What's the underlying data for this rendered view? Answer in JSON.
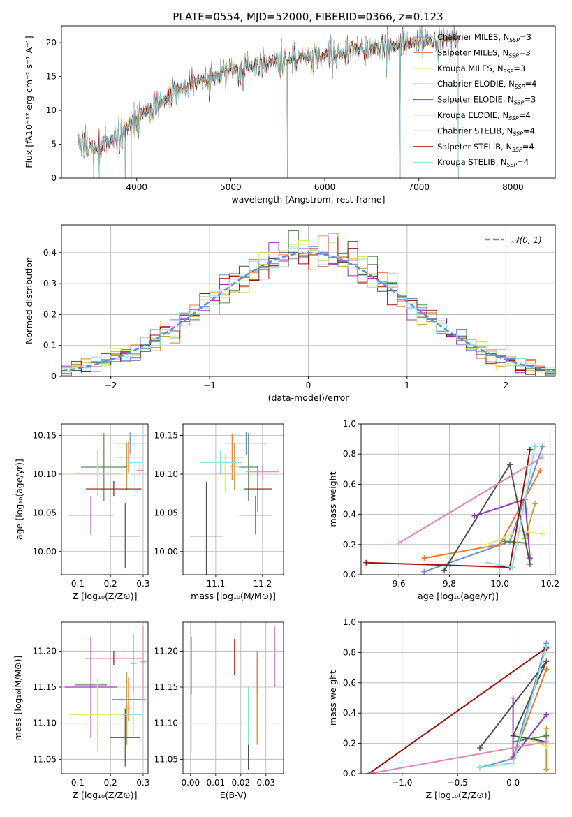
{
  "colors": {
    "chabrier_miles": "#6b8fd6",
    "salpeter_miles": "#e87a3a",
    "kroupa_miles": "#c8a23a",
    "chabrier_elodie": "#5a8a5a",
    "salpeter_elodie": "#9a35b8",
    "kroupa_elodie": "#d6ee66",
    "chabrier_stelib": "#505050",
    "salpeter_stelib": "#a01010",
    "kroupa_stelib": "#8edcdc",
    "pink": "#e088b8",
    "normal": "#5b8ed6"
  },
  "chart_data": [
    {
      "type": "line",
      "title": "PLATE=0554, MJD=52000, FIBERID=0366, z=0.123",
      "xlabel": "wavelength [Angstrom, rest frame]",
      "ylabel": "Flux [fλ10⁻¹⁷ erg cm⁻² s⁻¹ A⁻¹]",
      "xlim": [
        3200,
        8450
      ],
      "ylim": [
        0,
        22.5
      ],
      "xticks": [
        4000,
        5000,
        6000,
        7000,
        8000
      ],
      "yticks": [
        0,
        5,
        10,
        15,
        20
      ],
      "legend_placement": "upper-right",
      "legend": [
        "Chabrier MILES, N_SSP=3",
        "Salpeter MILES, N_SSP=3",
        "Kroupa MILES, N_SSP=3",
        "Chabrier ELODIE, N_SSP=4",
        "Salpeter ELODIE, N_SSP=3",
        "Kroupa ELODIE, N_SSP=4",
        "Chabrier STELIB, N_SSP=4",
        "Salpeter STELIB, N_SSP=4",
        "Kroupa STELIB, N_SSP=4"
      ],
      "spectrum_range": [
        3380,
        7420
      ],
      "continuum": [
        [
          3380,
          4.6
        ],
        [
          3600,
          4.5
        ],
        [
          3800,
          6.0
        ],
        [
          4000,
          9.0
        ],
        [
          4200,
          10.5
        ],
        [
          4400,
          12.5
        ],
        [
          4600,
          14.0
        ],
        [
          4800,
          15.0
        ],
        [
          5000,
          16.0
        ],
        [
          5200,
          16.5
        ],
        [
          5400,
          17.2
        ],
        [
          5600,
          17.5
        ],
        [
          5800,
          17.8
        ],
        [
          6000,
          18.2
        ],
        [
          6200,
          18.6
        ],
        [
          6400,
          19.0
        ],
        [
          6600,
          19.4
        ],
        [
          6800,
          19.7
        ],
        [
          7000,
          20.0
        ],
        [
          7200,
          20.5
        ],
        [
          7420,
          21.0
        ]
      ],
      "dips": [
        [
          3540,
          0
        ],
        [
          3600,
          0
        ],
        [
          3880,
          0
        ],
        [
          3940,
          0
        ],
        [
          5600,
          0
        ],
        [
          6800,
          0
        ],
        [
          7420,
          0
        ]
      ]
    },
    {
      "type": "line",
      "title": "",
      "xlabel": "(data-model)/error",
      "ylabel": "Normed distribution",
      "xlim": [
        -2.5,
        2.5
      ],
      "ylim": [
        0,
        0.49
      ],
      "xticks": [
        -2,
        -1,
        0,
        1,
        2
      ],
      "yticks": [
        0.0,
        0.1,
        0.2,
        0.3,
        0.4
      ],
      "legend_placement": "upper-right",
      "legend": [
        "𝒩(0, 1)"
      ],
      "bin_width": 0.1,
      "grid": true
    },
    {
      "type": "scatter",
      "xlabel": "Z [log₁₀(Z/Z⊙)]",
      "ylabel": "age  [log₁₀(age/yr)]",
      "xlim": [
        0.05,
        0.315
      ],
      "ylim": [
        9.97,
        10.165
      ],
      "xticks": [
        0.1,
        0.2,
        0.3
      ],
      "xticklabels": [
        "0.1",
        "0.2",
        "0.3"
      ],
      "yticks": [
        10.0,
        10.05,
        10.1,
        10.15
      ],
      "yticklabels": [
        "10.00",
        "10.05",
        "10.10",
        "10.15"
      ],
      "points": [
        {
          "c": "chabrier_miles",
          "x": 0.26,
          "xe": 0.05,
          "y": 10.14,
          "ye": 0.014
        },
        {
          "c": "salpeter_miles",
          "x": 0.255,
          "xe": 0.045,
          "y": 10.122,
          "ye": 0.02
        },
        {
          "c": "kroupa_miles",
          "x": 0.25,
          "xe": 0.01,
          "y": 10.11,
          "ye": 0.03
        },
        {
          "c": "chabrier_elodie",
          "x": 0.18,
          "xe": 0.07,
          "y": 10.109,
          "ye": 0.044
        },
        {
          "c": "salpeter_elodie",
          "x": 0.14,
          "xe": 0.07,
          "y": 10.047,
          "ye": 0.025
        },
        {
          "c": "kroupa_elodie",
          "x": 0.16,
          "xe": 0.07,
          "y": 10.101,
          "ye": 0.03
        },
        {
          "c": "chabrier_stelib",
          "x": 0.245,
          "xe": 0.045,
          "y": 10.02,
          "ye": 0.042
        },
        {
          "c": "salpeter_stelib",
          "x": 0.21,
          "xe": 0.085,
          "y": 10.081,
          "ye": 0.01
        },
        {
          "c": "kroupa_stelib",
          "x": 0.275,
          "xe": 0.025,
          "y": 10.115,
          "ye": 0.04
        },
        {
          "c": "pink",
          "x": 0.29,
          "xe": 0.01,
          "y": 10.105,
          "ye": 0.01
        }
      ]
    },
    {
      "type": "scatter",
      "xlabel": "mass [log₁₀(M/M⊙)]",
      "ylabel": "",
      "xlim": [
        11.03,
        11.245
      ],
      "ylim": [
        9.97,
        10.165
      ],
      "xticks": [
        11.1,
        11.2
      ],
      "xticklabels": [
        "11.1",
        "11.2"
      ],
      "yticks": [
        10.0,
        10.05,
        10.1,
        10.15
      ],
      "yticklabels": [
        "10.00",
        "10.05",
        "10.10",
        "10.15"
      ],
      "points": [
        {
          "c": "chabrier_miles",
          "x": 11.165,
          "xe": 0.045,
          "y": 10.14,
          "ye": 0.015
        },
        {
          "c": "salpeter_miles",
          "x": 11.135,
          "xe": 0.025,
          "y": 10.122,
          "ye": 0.03
        },
        {
          "c": "kroupa_miles",
          "x": 11.14,
          "xe": 0.01,
          "y": 10.11,
          "ye": 0.03
        },
        {
          "c": "chabrier_elodie",
          "x": 11.17,
          "xe": 0.02,
          "y": 10.109,
          "ye": 0.044
        },
        {
          "c": "salpeter_elodie",
          "x": 11.185,
          "xe": 0.035,
          "y": 10.047,
          "ye": 0.025
        },
        {
          "c": "kroupa_elodie",
          "x": 11.12,
          "xe": 0.025,
          "y": 10.101,
          "ye": 0.025
        },
        {
          "c": "chabrier_stelib",
          "x": 11.08,
          "xe": 0.035,
          "y": 10.02,
          "ye": 0.07
        },
        {
          "c": "salpeter_stelib",
          "x": 11.19,
          "xe": 0.03,
          "y": 10.081,
          "ye": 0.03
        },
        {
          "c": "kroupa_stelib",
          "x": 11.11,
          "xe": 0.045,
          "y": 10.115,
          "ye": 0.015
        },
        {
          "c": "pink",
          "x": 11.2,
          "xe": 0.035,
          "y": 10.103,
          "ye": 0.01
        }
      ]
    },
    {
      "type": "line",
      "xlabel": "age  [log₁₀(age/yr)]",
      "ylabel": "mass weight",
      "xlim": [
        9.45,
        10.22
      ],
      "ylim": [
        0,
        1
      ],
      "xticks": [
        9.6,
        9.8,
        10.0,
        10.2
      ],
      "xticklabels": [
        "9.6",
        "9.8",
        "10.0",
        "10.2"
      ],
      "yticks": [
        0,
        0.2,
        0.4,
        0.6,
        0.8,
        1.0
      ],
      "yticklabels": [
        "0.0",
        "0.2",
        "0.4",
        "0.6",
        "0.8",
        "1.0"
      ],
      "series": [
        {
          "c": "chabrier_miles",
          "pts": [
            [
              9.7,
              0.02
            ],
            [
              10.04,
              0.22
            ],
            [
              10.17,
              0.85
            ]
          ]
        },
        {
          "c": "salpeter_miles",
          "pts": [
            [
              9.7,
              0.11
            ],
            [
              10.0,
              0.2
            ],
            [
              10.16,
              0.69
            ]
          ]
        },
        {
          "c": "kroupa_miles",
          "pts": [
            [
              10.1,
              0.24
            ],
            [
              10.14,
              0.47
            ]
          ]
        },
        {
          "c": "chabrier_elodie",
          "pts": [
            [
              10.02,
              0.22
            ],
            [
              10.1,
              0.21
            ]
          ]
        },
        {
          "c": "salpeter_elodie",
          "pts": [
            [
              9.9,
              0.39
            ],
            [
              10.1,
              0.5
            ],
            [
              10.12,
              0.11
            ]
          ]
        },
        {
          "c": "kroupa_elodie",
          "pts": [
            [
              9.95,
              0.2
            ],
            [
              10.08,
              0.29
            ],
            [
              10.17,
              0.27
            ]
          ]
        },
        {
          "c": "chabrier_stelib",
          "pts": [
            [
              9.78,
              0.03
            ],
            [
              10.04,
              0.73
            ],
            [
              10.12,
              0.07
            ]
          ]
        },
        {
          "c": "salpeter_stelib",
          "pts": [
            [
              9.47,
              0.08
            ],
            [
              10.04,
              0.05
            ],
            [
              10.12,
              0.83
            ]
          ]
        },
        {
          "c": "kroupa_stelib",
          "pts": [
            [
              9.95,
              0.08
            ],
            [
              10.05,
              0.05
            ],
            [
              10.14,
              0.85
            ]
          ]
        },
        {
          "c": "pink",
          "pts": [
            [
              9.6,
              0.21
            ],
            [
              10.17,
              0.78
            ]
          ]
        }
      ]
    },
    {
      "type": "scatter",
      "xlabel": "Z [log₁₀(Z/Z⊙)]",
      "ylabel": "mass [log₁₀(M/M⊙)]",
      "xlim": [
        0.05,
        0.315
      ],
      "ylim": [
        11.03,
        11.24
      ],
      "xticks": [
        0.1,
        0.2,
        0.3
      ],
      "xticklabels": [
        "0.1",
        "0.2",
        "0.3"
      ],
      "yticks": [
        11.05,
        11.1,
        11.15,
        11.2
      ],
      "yticklabels": [
        "11.05",
        "11.10",
        "11.15",
        "11.20"
      ],
      "points": [
        {
          "c": "chabrier_miles",
          "x": 0.27,
          "xe": 0.01,
          "y": 11.183,
          "ye": 0.04
        },
        {
          "c": "salpeter_miles",
          "x": 0.255,
          "xe": 0.05,
          "y": 11.133,
          "ye": 0.03
        },
        {
          "c": "kroupa_miles",
          "x": 0.25,
          "xe": 0.01,
          "y": 11.12,
          "ye": 0.05
        },
        {
          "c": "chabrier_elodie",
          "x": 0.14,
          "xe": 0.05,
          "y": 11.153,
          "ye": 0.03
        },
        {
          "c": "salpeter_elodie",
          "x": 0.14,
          "xe": 0.08,
          "y": 11.15,
          "ye": 0.07
        },
        {
          "c": "kroupa_elodie",
          "x": 0.16,
          "xe": 0.085,
          "y": 11.112,
          "ye": 0.05
        },
        {
          "c": "chabrier_stelib",
          "x": 0.245,
          "xe": 0.045,
          "y": 11.08,
          "ye": 0.04
        },
        {
          "c": "salpeter_stelib",
          "x": 0.21,
          "xe": 0.09,
          "y": 11.19,
          "ye": 0.01
        },
        {
          "c": "kroupa_stelib",
          "x": 0.27,
          "xe": 0.03,
          "y": 11.112,
          "ye": 0.03
        },
        {
          "c": "pink",
          "x": 0.3,
          "xe": 0.01,
          "y": 11.185,
          "ye": 0.05
        }
      ]
    },
    {
      "type": "scatter",
      "xlabel": "E(B-V)",
      "ylabel": "",
      "xlim": [
        -0.003,
        0.037
      ],
      "ylim": [
        11.03,
        11.24
      ],
      "xticks": [
        0.0,
        0.01,
        0.02,
        0.03
      ],
      "xticklabels": [
        "0.00",
        "0.01",
        "0.02",
        "0.03"
      ],
      "yticks": [
        11.05,
        11.1,
        11.15,
        11.2
      ],
      "yticklabels": [
        "11.05",
        "11.10",
        "11.15",
        "11.20"
      ],
      "points": [
        {
          "c": "chabrier_miles",
          "x": 0.0265,
          "xe": 0,
          "y": 11.17,
          "ye": 0.03
        },
        {
          "c": "salpeter_miles",
          "x": 0.0265,
          "xe": 0,
          "y": 11.13,
          "ye": 0.06
        },
        {
          "c": "kroupa_miles",
          "x": 0.0265,
          "xe": 0,
          "y": 11.11,
          "ye": 0.03
        },
        {
          "c": "salpeter_elodie",
          "x": 0.0003,
          "xe": 0,
          "y": 11.18,
          "ye": 0.04
        },
        {
          "c": "kroupa_elodie",
          "x": 0.0003,
          "xe": 0,
          "y": 11.1,
          "ye": 0.04
        },
        {
          "c": "chabrier_stelib",
          "x": 0.023,
          "xe": 0,
          "y": 11.056,
          "ye": 0.02
        },
        {
          "c": "salpeter_stelib",
          "x": 0.0175,
          "xe": 0,
          "y": 11.192,
          "ye": 0.025
        },
        {
          "c": "kroupa_stelib",
          "x": 0.023,
          "xe": 0,
          "y": 11.11,
          "ye": 0.04
        },
        {
          "c": "pink",
          "x": 0.0335,
          "xe": 0,
          "y": 11.192,
          "ye": 0.042
        }
      ]
    },
    {
      "type": "line",
      "xlabel": "Z [log₁₀(Z/Z⊙)]",
      "ylabel": "mass weight",
      "xlim": [
        -1.37,
        0.38
      ],
      "ylim": [
        0,
        1
      ],
      "xticks": [
        -1.0,
        -0.5,
        0.0
      ],
      "xticklabels": [
        "−1.0",
        "−0.5",
        "0.0"
      ],
      "yticks": [
        0,
        0.2,
        0.4,
        0.6,
        0.8,
        1.0
      ],
      "yticklabels": [
        "0.0",
        "0.2",
        "0.4",
        "0.6",
        "0.8",
        "1.0"
      ],
      "series": [
        {
          "c": "chabrier_miles",
          "pts": [
            [
              -0.3,
              0.04
            ],
            [
              0.0,
              0.1
            ],
            [
              0.3,
              0.86
            ]
          ]
        },
        {
          "c": "salpeter_miles",
          "pts": [
            [
              0.0,
              0.1
            ],
            [
              0.3,
              0.69
            ]
          ]
        },
        {
          "c": "kroupa_miles",
          "pts": [
            [
              0.3,
              0.03
            ],
            [
              0.3,
              0.3
            ]
          ]
        },
        {
          "c": "chabrier_elodie",
          "pts": [
            [
              0.0,
              0.21
            ],
            [
              0.3,
              0.25
            ]
          ]
        },
        {
          "c": "salpeter_elodie",
          "pts": [
            [
              0.0,
              0.5
            ],
            [
              0.0,
              0.11
            ],
            [
              0.3,
              0.39
            ]
          ]
        },
        {
          "c": "kroupa_elodie",
          "pts": [
            [
              0.0,
              0.27
            ],
            [
              0.3,
              0.18
            ]
          ]
        },
        {
          "c": "chabrier_stelib",
          "pts": [
            [
              -0.3,
              0.17
            ],
            [
              0.3,
              0.74
            ],
            [
              0.0,
              0.25
            ],
            [
              0.3,
              0.21
            ]
          ]
        },
        {
          "c": "salpeter_stelib",
          "pts": [
            [
              -1.3,
              0.0
            ],
            [
              0.3,
              0.83
            ]
          ]
        },
        {
          "c": "kroupa_stelib",
          "pts": [
            [
              -0.3,
              0.04
            ],
            [
              0.0,
              0.07
            ],
            [
              0.3,
              0.84
            ]
          ]
        },
        {
          "c": "pink",
          "pts": [
            [
              -1.3,
              0.0
            ],
            [
              0.3,
              0.21
            ]
          ]
        }
      ]
    }
  ]
}
